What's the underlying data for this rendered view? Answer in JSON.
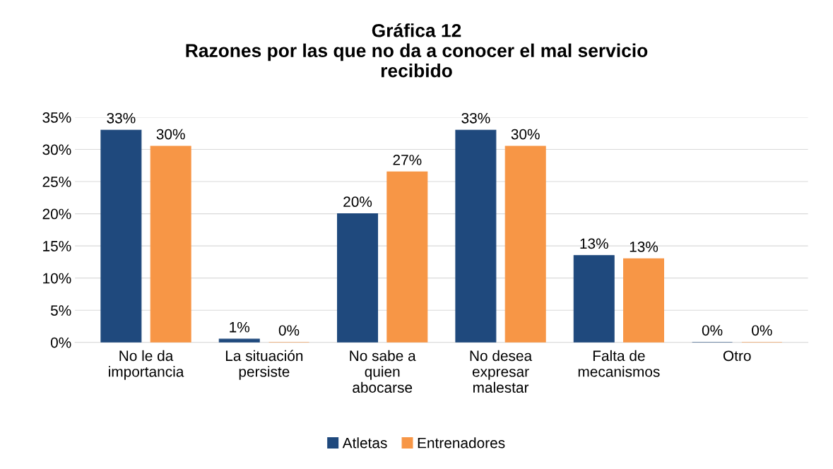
{
  "chart_data": {
    "type": "bar",
    "title": "Gráfica 12\nRazones por las que no da a conocer el mal servicio\nrecibido",
    "categories": [
      "No le da\nimportancia",
      "La situación\npersiste",
      "No sabe a\nquien\nabocarse",
      "No desea\nexpresar\nmalestar",
      "Falta de\nmecanismos",
      "Otro"
    ],
    "series": [
      {
        "name": "Atletas",
        "color": "#1f497d",
        "values": [
          33,
          0.5,
          20,
          33,
          13.5,
          0
        ],
        "value_labels": [
          "33%",
          "1%",
          "20%",
          "33%",
          "13%",
          "0%"
        ]
      },
      {
        "name": "Entrenadores",
        "color": "#f79646",
        "values": [
          30.5,
          0,
          26.5,
          30.5,
          13,
          0
        ],
        "value_labels": [
          "30%",
          "0%",
          "27%",
          "30%",
          "13%",
          "0%"
        ]
      }
    ],
    "ylim": [
      0,
      35
    ],
    "yticks": [
      {
        "value": 0,
        "label": "0%"
      },
      {
        "value": 5,
        "label": "5%"
      },
      {
        "value": 10,
        "label": "10%"
      },
      {
        "value": 15,
        "label": "15%"
      },
      {
        "value": 20,
        "label": "20%"
      },
      {
        "value": 25,
        "label": "25%"
      },
      {
        "value": 30,
        "label": "30%"
      },
      {
        "value": 35,
        "label": "35%"
      }
    ],
    "grid": "y",
    "legend": "bottom"
  }
}
